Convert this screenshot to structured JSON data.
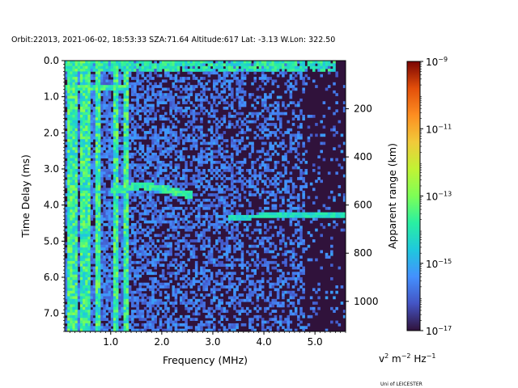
{
  "chart_data": {
    "type": "heatmap",
    "title": "Orbit:22013, 2021-06-02, 18:53:33 SZA:71.64 Altitude:617 Lat: -3.13 W.Lon: 322.50",
    "xlabel": "Frequency (MHz)",
    "ylabel": "Time Delay (ms)",
    "y2label": "Apparent range (km)",
    "xlim": [
      0.1,
      5.6
    ],
    "ylim": [
      7.5,
      0.0
    ],
    "y_inverted": true,
    "xticks": [
      {
        "v": 1.0,
        "label": "1.0"
      },
      {
        "v": 2.0,
        "label": "2.0"
      },
      {
        "v": 3.0,
        "label": "3.0"
      },
      {
        "v": 4.0,
        "label": "4.0"
      },
      {
        "v": 5.0,
        "label": "5.0"
      }
    ],
    "yticks": [
      {
        "v": 0.0,
        "label": "0.0"
      },
      {
        "v": 1.0,
        "label": "1.0"
      },
      {
        "v": 2.0,
        "label": "2.0"
      },
      {
        "v": 3.0,
        "label": "3.0"
      },
      {
        "v": 4.0,
        "label": "4.0"
      },
      {
        "v": 5.0,
        "label": "5.0"
      },
      {
        "v": 6.0,
        "label": "6.0"
      },
      {
        "v": 7.0,
        "label": "7.0"
      }
    ],
    "y2ticks": [
      {
        "v": 200,
        "label": "200"
      },
      {
        "v": 400,
        "label": "400"
      },
      {
        "v": 600,
        "label": "600"
      },
      {
        "v": 800,
        "label": "800"
      },
      {
        "v": 1000,
        "label": "1000"
      }
    ],
    "colorbar": {
      "scale": "log",
      "range": [
        1e-17,
        1e-09
      ],
      "ticks": [
        {
          "exp": -9,
          "label": "10",
          "sup": "−9"
        },
        {
          "exp": -11,
          "label": "10",
          "sup": "−11"
        },
        {
          "exp": -13,
          "label": "10",
          "sup": "−13"
        },
        {
          "exp": -15,
          "label": "10",
          "sup": "−15"
        },
        {
          "exp": -17,
          "label": "10",
          "sup": "−17"
        }
      ],
      "unit": "v² m⁻² Hz⁻¹"
    },
    "features": {
      "vertical_streaks_mhz": [
        0.2,
        0.3,
        0.45,
        0.55,
        0.75,
        1.1,
        1.3
      ],
      "top_band_delay_ms": 0.15,
      "echo_trace_1": {
        "x_mhz": [
          1.1,
          1.6,
          2.0,
          2.5
        ],
        "delay_ms": [
          3.6,
          3.45,
          3.55,
          3.7
        ]
      },
      "echo_trace_2": {
        "x_mhz": [
          3.3,
          4.0,
          5.5
        ],
        "delay_ms": [
          4.35,
          4.3,
          4.25
        ]
      }
    }
  },
  "texts": {
    "title": "Orbit:22013, 2021-06-02, 18:53:33 SZA:71.64 Altitude:617 Lat: -3.13 W.Lon: 322.50",
    "credit": "Uni of LEICESTER",
    "cb_unit_v": "v",
    "cb_unit_v_sup": "2",
    "cb_unit_m": " m",
    "cb_unit_m_sup": "−2",
    "cb_unit_hz": " Hz",
    "cb_unit_hz_sup": "−1"
  }
}
